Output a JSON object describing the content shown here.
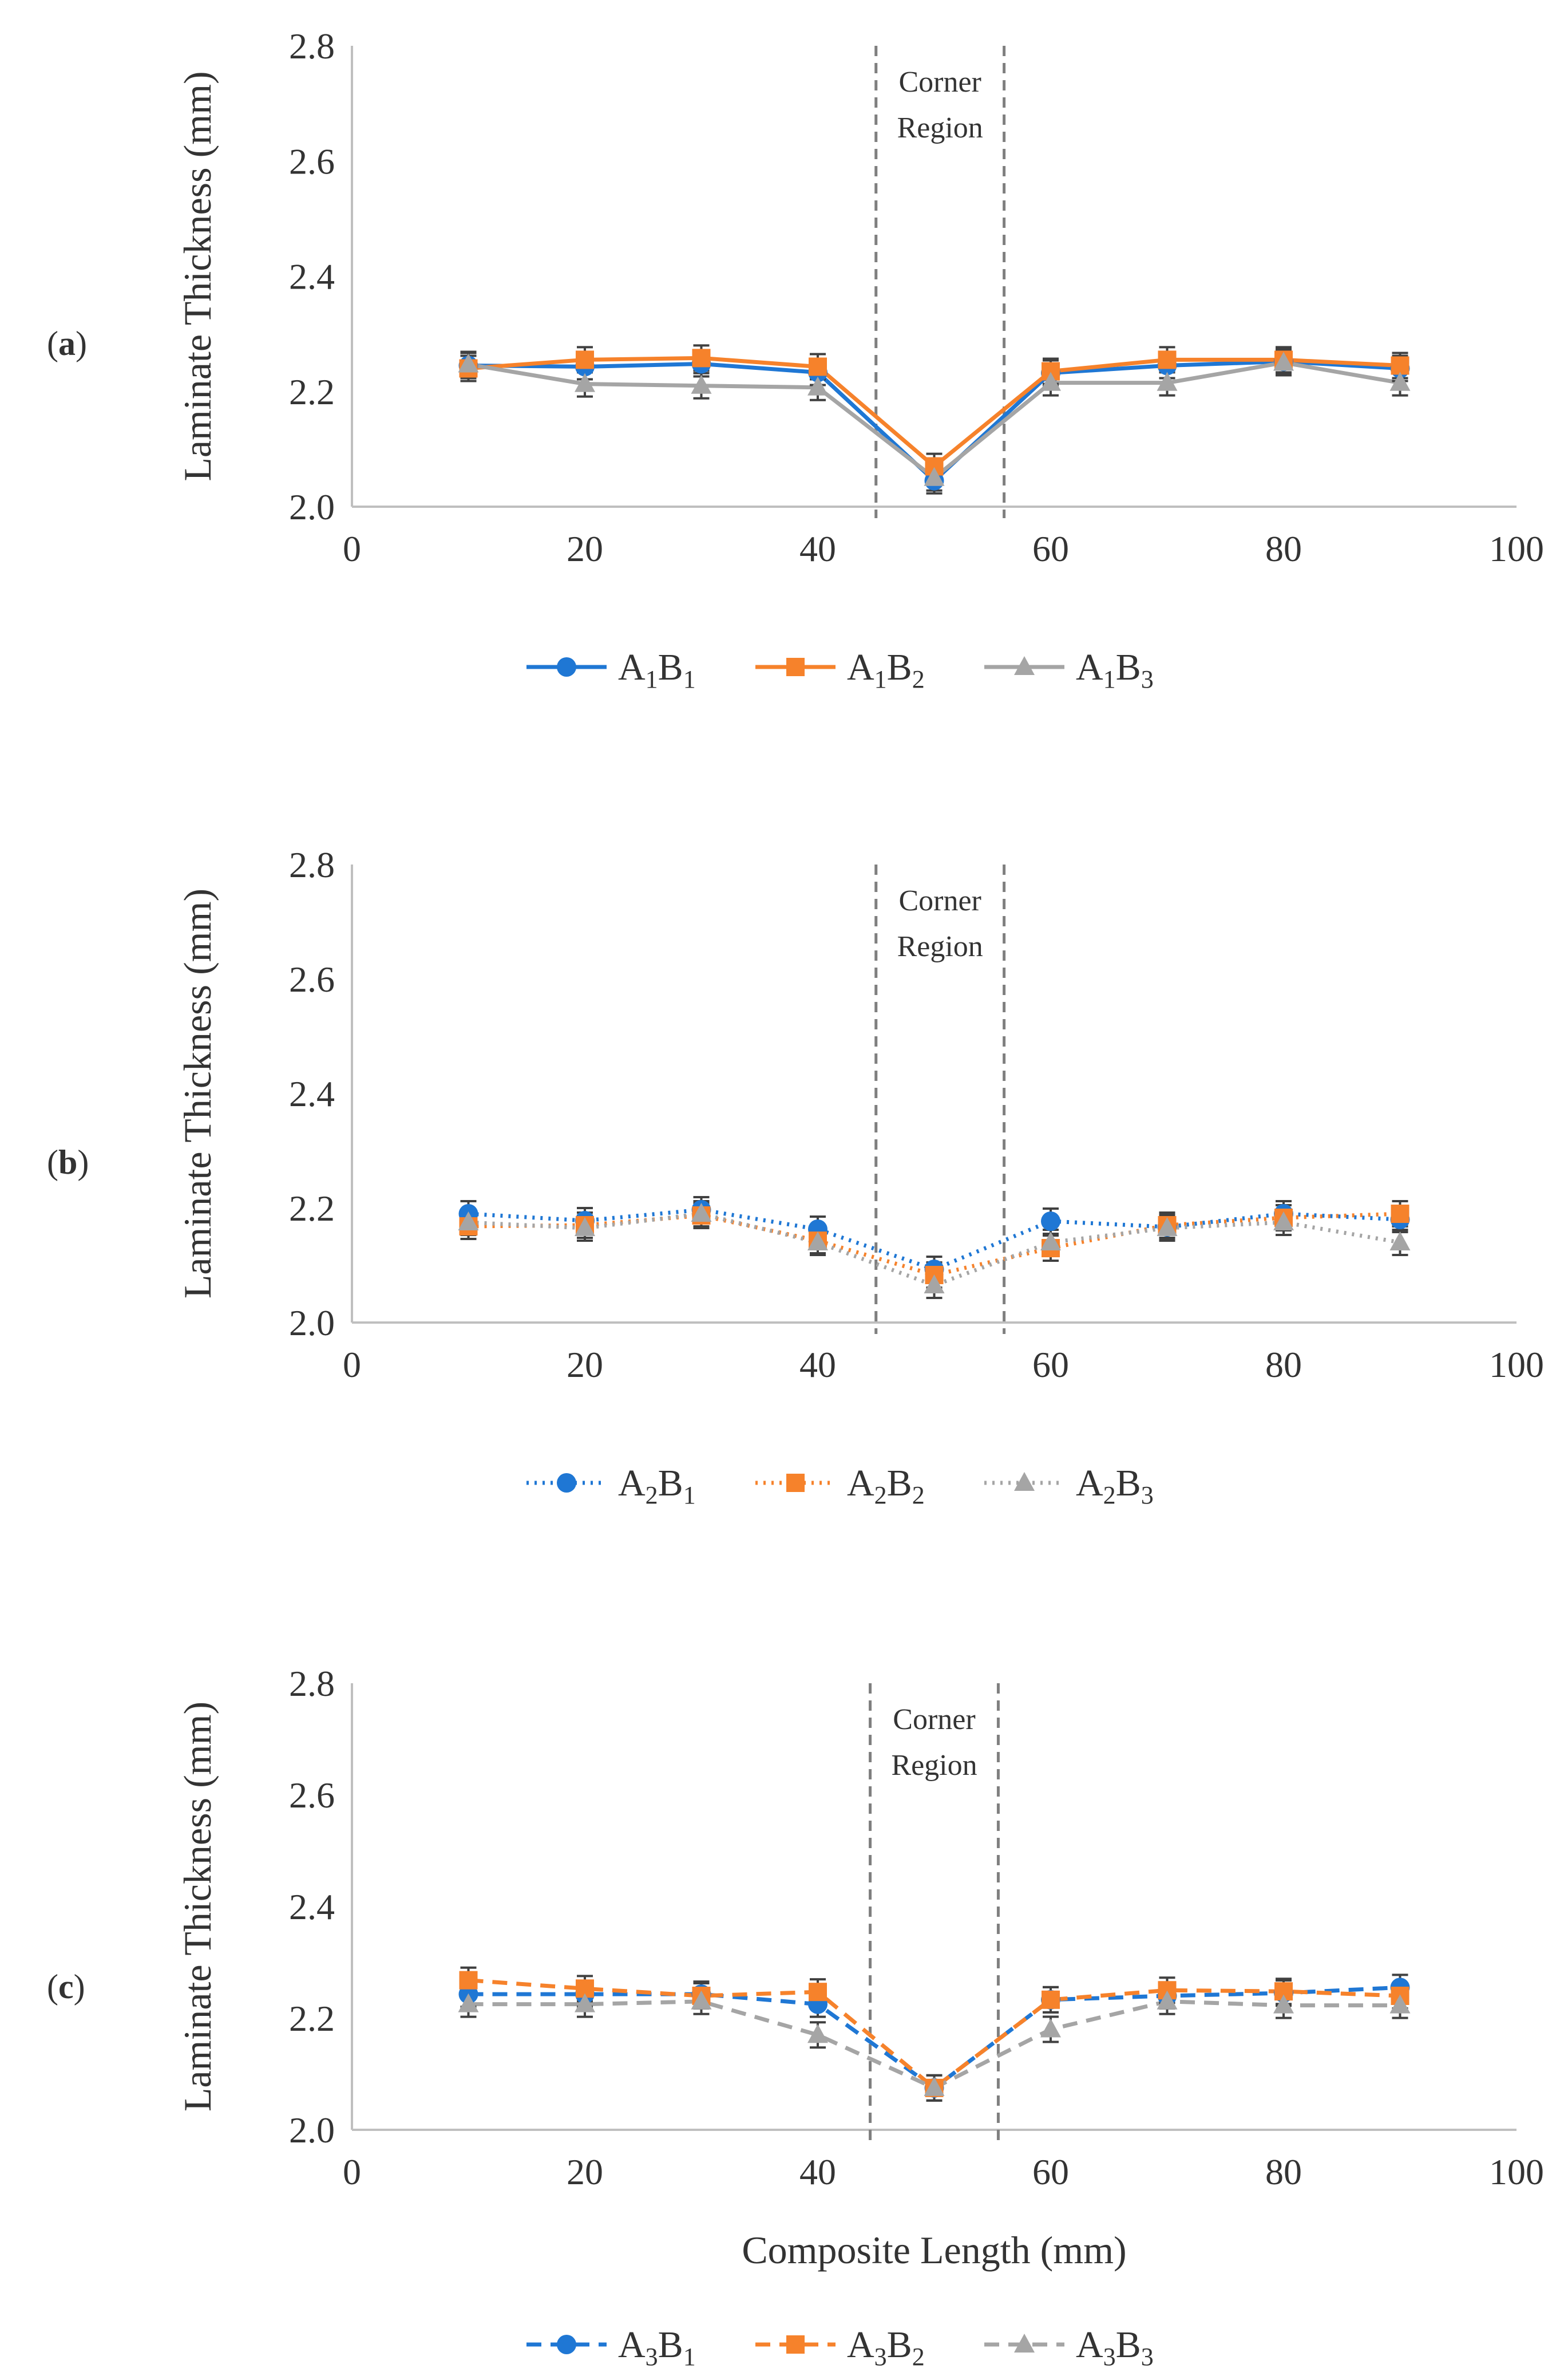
{
  "figure": {
    "xlabel": "Composite Length (mm)",
    "ylabel": "Laminate Thickness (mm)",
    "annotation": "Corner Region"
  },
  "chart_data": [
    {
      "type": "line",
      "panel_label": "a",
      "line_style": "solid",
      "ylabel": "Laminate Thickness (mm)",
      "xlabel": "",
      "xlim": [
        0,
        100
      ],
      "ylim": [
        2.0,
        2.8
      ],
      "xticks": [
        0,
        20,
        40,
        60,
        80,
        100
      ],
      "yticks": [
        2.0,
        2.2,
        2.4,
        2.6,
        2.8
      ],
      "corner_region": [
        45,
        56
      ],
      "annotation": "Corner Region",
      "x": [
        10,
        20,
        30,
        40,
        50,
        60,
        70,
        80,
        90
      ],
      "series": [
        {
          "name": "A1B1",
          "base": "A",
          "sub1": "1",
          "mid": "B",
          "sub2": "1",
          "color": "#1F77D4",
          "marker": "circle",
          "values": [
            2.245,
            2.243,
            2.248,
            2.233,
            2.045,
            2.232,
            2.245,
            2.252,
            2.24
          ]
        },
        {
          "name": "A1B2",
          "base": "A",
          "sub1": "1",
          "mid": "B",
          "sub2": "2",
          "color": "#F6822B",
          "marker": "square",
          "values": [
            2.24,
            2.255,
            2.258,
            2.243,
            2.07,
            2.235,
            2.255,
            2.255,
            2.245
          ]
        },
        {
          "name": "A1B3",
          "base": "A",
          "sub1": "1",
          "mid": "B",
          "sub2": "3",
          "color": "#A5A5A5",
          "marker": "triangle",
          "values": [
            2.247,
            2.213,
            2.21,
            2.207,
            2.05,
            2.215,
            2.215,
            2.25,
            2.215
          ]
        }
      ]
    },
    {
      "type": "line",
      "panel_label": "b",
      "line_style": "dotted",
      "ylabel": "Laminate Thickness (mm)",
      "xlabel": "",
      "xlim": [
        0,
        100
      ],
      "ylim": [
        2.0,
        2.8
      ],
      "xticks": [
        0,
        20,
        40,
        60,
        80,
        100
      ],
      "yticks": [
        2.0,
        2.2,
        2.4,
        2.6,
        2.8
      ],
      "corner_region": [
        45,
        56
      ],
      "annotation": "Corner Region",
      "x": [
        10,
        20,
        30,
        40,
        50,
        60,
        70,
        80,
        90
      ],
      "series": [
        {
          "name": "A2B1",
          "base": "A",
          "sub1": "2",
          "mid": "B",
          "sub2": "1",
          "color": "#1F77D4",
          "marker": "circle",
          "values": [
            2.19,
            2.178,
            2.197,
            2.163,
            2.093,
            2.177,
            2.167,
            2.19,
            2.18
          ]
        },
        {
          "name": "A2B2",
          "base": "A",
          "sub1": "2",
          "mid": "B",
          "sub2": "2",
          "color": "#F6822B",
          "marker": "square",
          "values": [
            2.168,
            2.17,
            2.187,
            2.143,
            2.083,
            2.13,
            2.17,
            2.183,
            2.19
          ]
        },
        {
          "name": "A2B3",
          "base": "A",
          "sub1": "2",
          "mid": "B",
          "sub2": "3",
          "color": "#A5A5A5",
          "marker": "triangle",
          "values": [
            2.175,
            2.165,
            2.19,
            2.14,
            2.065,
            2.14,
            2.165,
            2.175,
            2.14
          ]
        }
      ]
    },
    {
      "type": "line",
      "panel_label": "c",
      "line_style": "dashed",
      "ylabel": "Laminate Thickness (mm)",
      "xlabel": "Composite Length (mm)",
      "xlim": [
        0,
        100
      ],
      "ylim": [
        2.0,
        2.8
      ],
      "xticks": [
        0,
        20,
        40,
        60,
        80,
        100
      ],
      "yticks": [
        2.0,
        2.2,
        2.4,
        2.6,
        2.8
      ],
      "corner_region": [
        44.5,
        55.5
      ],
      "annotation": "Corner Region",
      "x": [
        10,
        20,
        30,
        40,
        50,
        60,
        70,
        80,
        90
      ],
      "series": [
        {
          "name": "A3B1",
          "base": "A",
          "sub1": "3",
          "mid": "B",
          "sub2": "1",
          "color": "#1F77D4",
          "marker": "circle",
          "values": [
            2.243,
            2.243,
            2.243,
            2.225,
            2.075,
            2.233,
            2.24,
            2.245,
            2.255
          ]
        },
        {
          "name": "A3B2",
          "base": "A",
          "sub1": "3",
          "mid": "B",
          "sub2": "2",
          "color": "#F6822B",
          "marker": "square",
          "values": [
            2.268,
            2.253,
            2.24,
            2.247,
            2.075,
            2.233,
            2.25,
            2.248,
            2.24
          ]
        },
        {
          "name": "A3B3",
          "base": "A",
          "sub1": "3",
          "mid": "B",
          "sub2": "3",
          "color": "#A5A5A5",
          "marker": "triangle",
          "values": [
            2.225,
            2.225,
            2.23,
            2.17,
            2.075,
            2.18,
            2.23,
            2.223,
            2.223
          ]
        }
      ]
    }
  ]
}
